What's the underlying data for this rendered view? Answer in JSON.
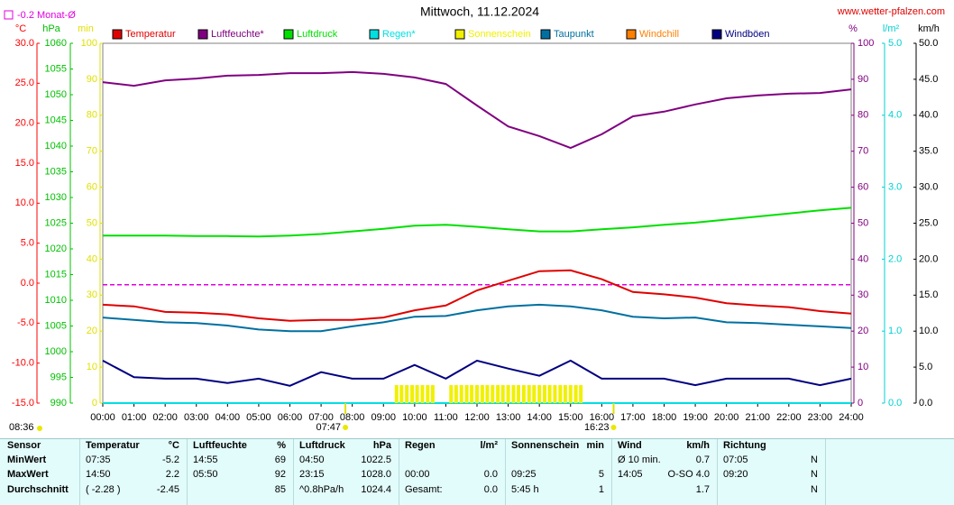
{
  "chart_data": {
    "type": "line",
    "title": "Mittwoch, 11.12.2024",
    "source": "www.wetter-pfalzen.com",
    "xlim": [
      0,
      24
    ],
    "xticks": [
      {
        "value": 0,
        "label": "00:00"
      },
      {
        "value": 1,
        "label": "01:00"
      },
      {
        "value": 2,
        "label": "02:00"
      },
      {
        "value": 3,
        "label": "03:00"
      },
      {
        "value": 4,
        "label": "04:00"
      },
      {
        "value": 5,
        "label": "05:00"
      },
      {
        "value": 6,
        "label": "06:00"
      },
      {
        "value": 7,
        "label": "07:00"
      },
      {
        "value": 8,
        "label": "08:00"
      },
      {
        "value": 9,
        "label": "09:00"
      },
      {
        "value": 10,
        "label": "10:00"
      },
      {
        "value": 11,
        "label": "11:00"
      },
      {
        "value": 12,
        "label": "12:00"
      },
      {
        "value": 13,
        "label": "13:00"
      },
      {
        "value": 14,
        "label": "14:00"
      },
      {
        "value": 15,
        "label": "15:00"
      },
      {
        "value": 16,
        "label": "16:00"
      },
      {
        "value": 17,
        "label": "17:00"
      },
      {
        "value": 18,
        "label": "18:00"
      },
      {
        "value": 19,
        "label": "19:00"
      },
      {
        "value": 20,
        "label": "20:00"
      },
      {
        "value": 21,
        "label": "21:00"
      },
      {
        "value": 22,
        "label": "22:00"
      },
      {
        "value": 23,
        "label": "23:00"
      },
      {
        "value": 24,
        "label": "24:00"
      }
    ],
    "x": [
      0,
      1,
      2,
      3,
      4,
      5,
      6,
      7,
      8,
      9,
      10,
      11,
      12,
      13,
      14,
      15,
      16,
      17,
      18,
      19,
      20,
      21,
      22,
      23,
      24
    ],
    "axes": [
      {
        "unit": "°C",
        "side": "left",
        "color": "#ff0000",
        "lim": [
          -15,
          30
        ],
        "ticks": [
          {
            "value": -15,
            "label": "-15.0"
          },
          {
            "value": -10,
            "label": "-10.0"
          },
          {
            "value": -5,
            "label": "-5.0"
          },
          {
            "value": 0,
            "label": "0.0"
          },
          {
            "value": 5,
            "label": "5.0"
          },
          {
            "value": 10,
            "label": "10.0"
          },
          {
            "value": 15,
            "label": "15.0"
          },
          {
            "value": 20,
            "label": "20.0"
          },
          {
            "value": 25,
            "label": "25.0"
          },
          {
            "value": 30,
            "label": "30.0"
          }
        ]
      },
      {
        "unit": "hPa",
        "side": "left",
        "color": "#00c000",
        "lim": [
          990,
          1060
        ],
        "ticks": [
          990,
          995,
          1000,
          1005,
          1010,
          1015,
          1020,
          1025,
          1030,
          1035,
          1040,
          1045,
          1050,
          1055,
          1060
        ]
      },
      {
        "unit": "min",
        "side": "left",
        "color": "#e0e000",
        "lim": [
          0,
          100
        ],
        "ticks": [
          0,
          10,
          20,
          30,
          40,
          50,
          60,
          70,
          80,
          90,
          100
        ]
      },
      {
        "unit": "%",
        "side": "right",
        "color": "#800080",
        "lim": [
          0,
          100
        ],
        "ticks": [
          0,
          10,
          20,
          30,
          40,
          50,
          60,
          70,
          80,
          90,
          100
        ]
      },
      {
        "unit": "l/m²",
        "side": "right",
        "color": "#00d0d0",
        "lim": [
          0,
          5
        ],
        "ticks": [
          {
            "value": 0,
            "label": "0.0"
          },
          {
            "value": 1,
            "label": "1.0"
          },
          {
            "value": 2,
            "label": "2.0"
          },
          {
            "value": 3,
            "label": "3.0"
          },
          {
            "value": 4,
            "label": "4.0"
          },
          {
            "value": 5,
            "label": "5.0"
          }
        ]
      },
      {
        "unit": "km/h",
        "side": "right",
        "color": "#000000",
        "lim": [
          0,
          50
        ],
        "ticks": [
          {
            "value": 0,
            "label": "0.0"
          },
          {
            "value": 5,
            "label": "5.0"
          },
          {
            "value": 10,
            "label": "10.0"
          },
          {
            "value": 15,
            "label": "15.0"
          },
          {
            "value": 20,
            "label": "20.0"
          },
          {
            "value": 25,
            "label": "25.0"
          },
          {
            "value": 30,
            "label": "30.0"
          },
          {
            "value": 35,
            "label": "35.0"
          },
          {
            "value": 40,
            "label": "40.0"
          },
          {
            "value": 45,
            "label": "45.0"
          },
          {
            "value": 50,
            "label": "50.0"
          }
        ]
      }
    ],
    "reference": {
      "label": "-0.2 Monat-Ø",
      "value": -0.2,
      "axis": 0,
      "color": "#e000e0"
    },
    "series": [
      {
        "name": "Temperatur",
        "color": "#e00000",
        "axis": 0,
        "values": [
          -2.7,
          -2.9,
          -3.6,
          -3.7,
          -3.9,
          -4.4,
          -4.7,
          -4.6,
          -4.6,
          -4.3,
          -3.4,
          -2.8,
          -0.9,
          0.3,
          1.5,
          1.6,
          0.5,
          -1.1,
          -1.4,
          -1.8,
          -2.5,
          -2.8,
          -3.0,
          -3.5,
          -3.8
        ]
      },
      {
        "name": "Luftfeuchte*",
        "color": "#800080",
        "axis": 3,
        "values": [
          89.2,
          88.2,
          89.7,
          90.2,
          91,
          91.2,
          91.7,
          91.7,
          92,
          91.5,
          90.5,
          88.7,
          82.7,
          76.9,
          74.2,
          70.9,
          74.7,
          79.7,
          81,
          83,
          84.7,
          85.5,
          86,
          86.2,
          87.2
        ]
      },
      {
        "name": "Luftdruck",
        "color": "#00e000",
        "axis": 1,
        "values": [
          1022.6,
          1022.6,
          1022.6,
          1022.5,
          1022.5,
          1022.4,
          1022.6,
          1022.9,
          1023.4,
          1023.9,
          1024.5,
          1024.7,
          1024.3,
          1023.8,
          1023.4,
          1023.4,
          1023.8,
          1024.2,
          1024.7,
          1025.1,
          1025.7,
          1026.3,
          1026.9,
          1027.5,
          1028.0
        ]
      },
      {
        "name": "Regen*",
        "color": "#00e0e0",
        "axis": 4,
        "x": [
          0,
          24
        ],
        "values": [
          0,
          0
        ]
      },
      {
        "name": "Sonnenschein",
        "color": "#f0f000",
        "axis": 2,
        "type": "bar",
        "x": [
          9.42,
          9.58,
          9.75,
          9.92,
          10.08,
          10.25,
          10.42,
          10.58,
          11.17,
          11.33,
          11.5,
          11.67,
          11.83,
          12,
          12.17,
          12.33,
          12.5,
          12.67,
          12.83,
          13,
          13.17,
          13.33,
          13.5,
          13.67,
          13.83,
          14,
          14.17,
          14.33,
          14.5,
          14.67,
          14.83,
          15,
          15.17,
          15.33
        ],
        "values": [
          5,
          5,
          5,
          5,
          5,
          5,
          5,
          5,
          5,
          5,
          5,
          5,
          5,
          5,
          5,
          5,
          5,
          5,
          5,
          5,
          5,
          5,
          5,
          5,
          5,
          5,
          5,
          5,
          5,
          5,
          5,
          5,
          5,
          5
        ]
      },
      {
        "name": "Taupunkt",
        "color": "#0070a0",
        "axis": 0,
        "values": [
          -4.3,
          -4.6,
          -4.9,
          -5.0,
          -5.3,
          -5.8,
          -6.0,
          -6.0,
          -5.4,
          -4.9,
          -4.2,
          -4.1,
          -3.4,
          -2.9,
          -2.7,
          -2.9,
          -3.4,
          -4.2,
          -4.4,
          -4.3,
          -4.9,
          -5.0,
          -5.2,
          -5.4,
          -5.6
        ]
      },
      {
        "name": "Windchill",
        "color": "#ff8000",
        "axis": 0,
        "x": [],
        "values": []
      },
      {
        "name": "Windböen",
        "color": "#000080",
        "axis": 5,
        "values": [
          5.9,
          3.6,
          3.4,
          3.4,
          2.8,
          3.4,
          2.4,
          4.3,
          3.4,
          3.4,
          5.3,
          3.4,
          5.9,
          4.8,
          3.8,
          5.9,
          3.4,
          3.4,
          3.4,
          2.5,
          3.4,
          3.4,
          3.4,
          2.5,
          3.4
        ]
      }
    ],
    "sunrise": {
      "label": "07:47",
      "x": 7.78
    },
    "sunset": {
      "label": "16:23",
      "x": 16.38
    },
    "day_length": "08:36"
  },
  "table": {
    "header": {
      "label": "Sensor",
      "groups": [
        [
          "Temperatur",
          "°C"
        ],
        [
          "Luftfeuchte",
          "%"
        ],
        [
          "Luftdruck",
          "hPa"
        ],
        [
          "Regen",
          "l/m²"
        ],
        [
          "Sonnenschein",
          "min"
        ],
        [
          "Wind",
          "km/h"
        ],
        [
          "Richtung",
          null
        ]
      ]
    },
    "rows": [
      {
        "label": "MinWert",
        "cells": [
          [
            "07:35",
            "-5.2"
          ],
          [
            "14:55",
            "69"
          ],
          [
            "04:50",
            "1022.5"
          ],
          [
            null,
            null
          ],
          [
            null,
            null
          ],
          [
            "Ø 10 min.",
            "0.7"
          ],
          [
            "07:05",
            "N"
          ]
        ]
      },
      {
        "label": "MaxWert",
        "cells": [
          [
            "14:50",
            "2.2"
          ],
          [
            "05:50",
            "92"
          ],
          [
            "23:15",
            "1028.0"
          ],
          [
            "00:00",
            "0.0"
          ],
          [
            "09:25",
            "5"
          ],
          [
            "14:05",
            "O-SO 4.0"
          ],
          [
            "09:20",
            "N"
          ]
        ]
      },
      {
        "label": "Durchschnitt",
        "cells": [
          [
            "( -2.28 )",
            "-2.45"
          ],
          [
            null,
            "85"
          ],
          [
            "^0.8hPa/h",
            "1024.4"
          ],
          [
            "Gesamt:",
            "0.0"
          ],
          [
            "5:45 h",
            "1"
          ],
          [
            null,
            "1.7"
          ],
          [
            null,
            "N"
          ]
        ]
      }
    ]
  }
}
